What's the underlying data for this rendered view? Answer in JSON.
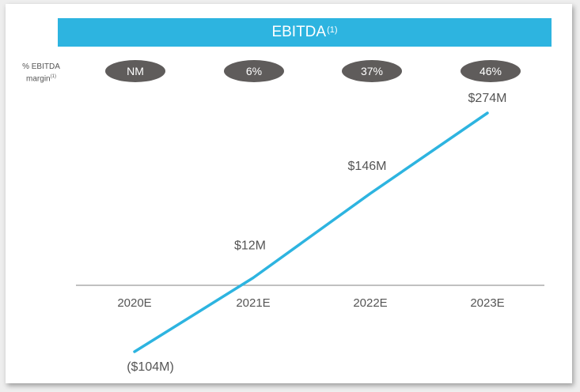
{
  "banner": {
    "title": "EBITDA",
    "superscript": "(1)"
  },
  "margin_label": {
    "line1": "% EBITDA",
    "line2": "margin",
    "superscript": "(1)"
  },
  "margins": [
    "NM",
    "6%",
    "37%",
    "46%"
  ],
  "chart_data": {
    "type": "line",
    "title": "EBITDA(1)",
    "categories": [
      "2020E",
      "2021E",
      "2022E",
      "2023E"
    ],
    "series": [
      {
        "values": [
          -104,
          12,
          146,
          274
        ]
      }
    ],
    "data_labels": [
      "($104M)",
      "$12M",
      "$146M",
      "$274M"
    ],
    "ylim": [
      -104,
      274
    ],
    "grid": false,
    "line_color": "#2db4e0",
    "axis_color": "#9a9a9a"
  }
}
